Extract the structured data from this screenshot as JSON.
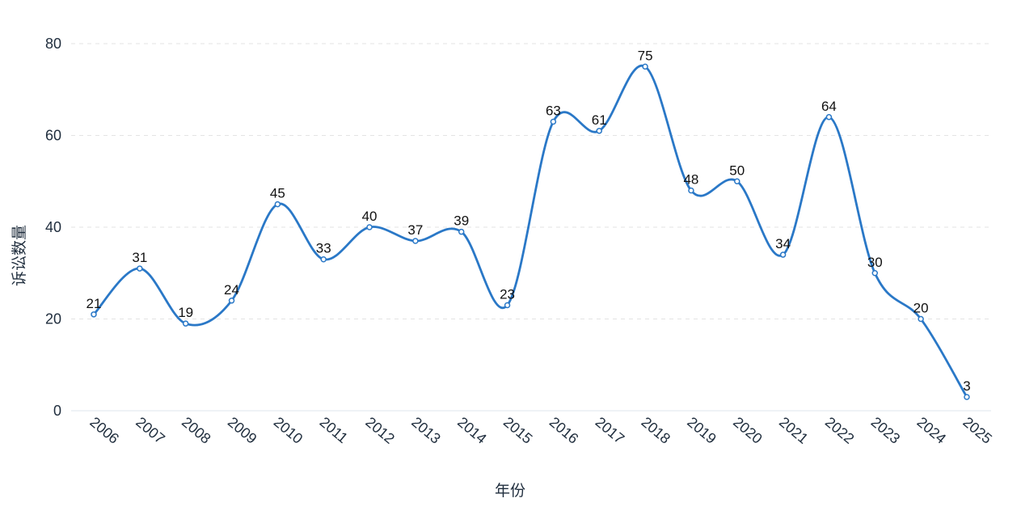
{
  "chart_data": {
    "type": "line",
    "title": "",
    "xlabel": "年份",
    "ylabel": "诉讼数量",
    "categories": [
      "2006",
      "2007",
      "2008",
      "2009",
      "2010",
      "2011",
      "2012",
      "2013",
      "2014",
      "2015",
      "2016",
      "2017",
      "2018",
      "2019",
      "2020",
      "2021",
      "2022",
      "2023",
      "2024",
      "2025"
    ],
    "series": [
      {
        "values": [
          21,
          31,
          19,
          24,
          45,
          33,
          40,
          37,
          39,
          23,
          63,
          61,
          75,
          48,
          50,
          34,
          64,
          30,
          20,
          3
        ]
      }
    ],
    "ylim": [
      0,
      80
    ],
    "yticks": [
      0,
      20,
      40,
      60,
      80
    ],
    "smooth": true,
    "data_labels": true,
    "grid": "horizontal-dashed",
    "legend": "none",
    "line_color": "#2a78c7"
  }
}
